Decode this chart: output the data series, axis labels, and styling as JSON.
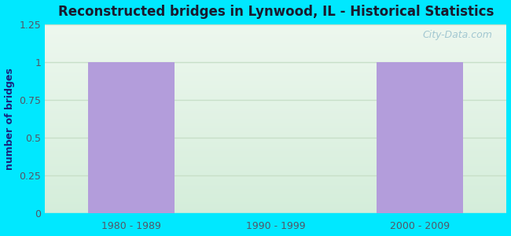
{
  "title": "Reconstructed bridges in Lynwood, IL - Historical Statistics",
  "categories": [
    "1980 - 1989",
    "1990 - 1999",
    "2000 - 2009"
  ],
  "values": [
    1,
    0,
    1
  ],
  "bar_color": "#b39ddb",
  "ylabel": "number of bridges",
  "ylim": [
    0,
    1.25
  ],
  "yticks": [
    0,
    0.25,
    0.5,
    0.75,
    1,
    1.25
  ],
  "background_outer": "#00e8ff",
  "background_plot_bottom": "#d4edda",
  "background_plot_top": "#edf7ee",
  "grid_color": "#c8dfc8",
  "title_color": "#1a1a2e",
  "label_color": "#1a237e",
  "tick_color": "#555566",
  "watermark": "City-Data.com"
}
